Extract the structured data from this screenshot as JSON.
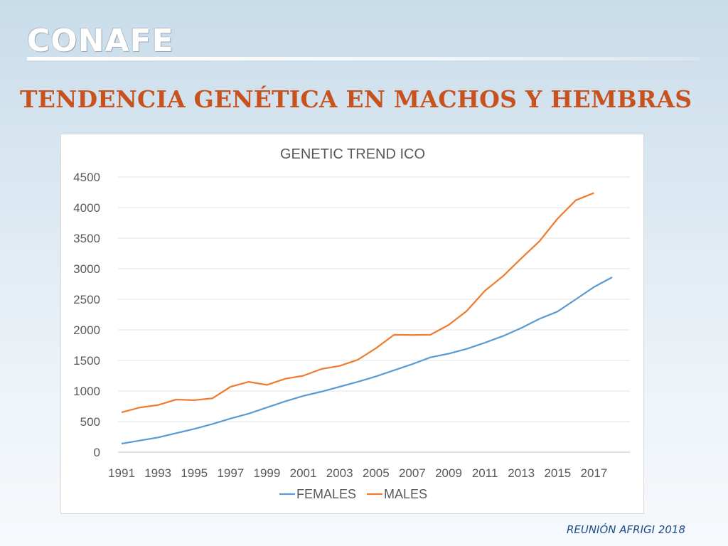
{
  "header": {
    "logo_text": "CONAFE",
    "title": "TENDENCIA GENÉTICA EN MACHOS Y HEMBRAS"
  },
  "footer": {
    "text": "REUNIÓN AFRIGI 2018"
  },
  "colors": {
    "title": "#c8521e",
    "females": "#5b9bd5",
    "males": "#ed7d31",
    "footer": "#1f4e8c"
  },
  "chart_data": {
    "type": "line",
    "title": "GENETIC TREND ICO",
    "xlabel": "",
    "ylabel": "",
    "ylim": [
      0,
      4500
    ],
    "yticks": [
      "0",
      "500",
      "1000",
      "1500",
      "2000",
      "2500",
      "3000",
      "3500",
      "4000",
      "4500"
    ],
    "xtick_labels": [
      "1991",
      "1993",
      "1995",
      "1997",
      "1999",
      "2001",
      "2003",
      "2005",
      "2007",
      "2009",
      "2011",
      "2013",
      "2015",
      "2017"
    ],
    "grid": "horizontal",
    "legend": "bottom",
    "series": [
      {
        "name": "FEMALES",
        "color": "#5b9bd5",
        "x": [
          1991,
          1992,
          1993,
          1994,
          1995,
          1996,
          1997,
          1998,
          1999,
          2000,
          2001,
          2002,
          2003,
          2004,
          2005,
          2006,
          2007,
          2008,
          2009,
          2010,
          2011,
          2012,
          2013,
          2014,
          2015,
          2016,
          2017,
          2018
        ],
        "values": [
          140,
          190,
          240,
          310,
          380,
          460,
          550,
          630,
          730,
          830,
          920,
          990,
          1070,
          1150,
          1240,
          1340,
          1440,
          1550,
          1610,
          1690,
          1790,
          1900,
          2030,
          2180,
          2300,
          2500,
          2700,
          2860
        ]
      },
      {
        "name": "MALES",
        "color": "#ed7d31",
        "x": [
          1991,
          1992,
          1993,
          1994,
          1995,
          1996,
          1997,
          1998,
          1999,
          2000,
          2001,
          2002,
          2003,
          2004,
          2005,
          2006,
          2007,
          2008,
          2009,
          2010,
          2011,
          2012,
          2013,
          2014,
          2015,
          2016,
          2017
        ],
        "values": [
          650,
          730,
          770,
          860,
          850,
          880,
          1070,
          1150,
          1100,
          1200,
          1250,
          1360,
          1410,
          1510,
          1700,
          1920,
          1915,
          1920,
          2080,
          2310,
          2640,
          2880,
          3170,
          3450,
          3820,
          4120,
          4240
        ]
      }
    ]
  }
}
